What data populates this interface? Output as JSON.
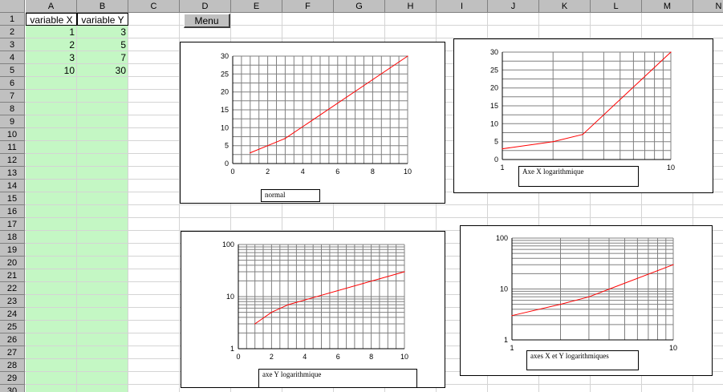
{
  "columns": [
    "A",
    "B",
    "C",
    "D",
    "E",
    "F",
    "G",
    "H",
    "I",
    "J",
    "K",
    "L",
    "M",
    "N"
  ],
  "rows": [
    "1",
    "2",
    "3",
    "4",
    "5",
    "6",
    "7",
    "8",
    "9",
    "10",
    "11",
    "12",
    "13",
    "14",
    "15",
    "16",
    "17",
    "18",
    "19",
    "20",
    "21",
    "22",
    "23",
    "24",
    "25",
    "26",
    "27",
    "28",
    "29",
    "30"
  ],
  "cells": {
    "A1": "variable X",
    "B1": "variable Y",
    "x_values": [
      "1",
      "2",
      "3",
      "10"
    ],
    "y_values": [
      "3",
      "5",
      "7",
      "30"
    ]
  },
  "menu_button": {
    "label": "Menu"
  },
  "colors": {
    "series_line": "#ff0000",
    "input_fill": "#c4f7c4",
    "grid": "#808080"
  },
  "chart_data": [
    {
      "type": "line",
      "caption": "normal",
      "x": [
        1,
        2,
        3,
        10
      ],
      "y": [
        3,
        5,
        7,
        30
      ],
      "xscale": "linear",
      "yscale": "linear",
      "xlim": [
        0,
        10
      ],
      "ylim": [
        0,
        30
      ],
      "xticks": [
        "0",
        "2",
        "4",
        "6",
        "8",
        "10"
      ],
      "yticks": [
        "0",
        "5",
        "10",
        "15",
        "20",
        "25",
        "30"
      ],
      "grid": true
    },
    {
      "type": "line",
      "caption": "Axe X logarithmique",
      "x": [
        1,
        2,
        3,
        10
      ],
      "y": [
        3,
        5,
        7,
        30
      ],
      "xscale": "log",
      "yscale": "linear",
      "xlim": [
        1,
        10
      ],
      "ylim": [
        0,
        30
      ],
      "xticks": [
        "1",
        "10"
      ],
      "yticks": [
        "0",
        "5",
        "10",
        "15",
        "20",
        "25",
        "30"
      ],
      "grid": true
    },
    {
      "type": "line",
      "caption": "axe Y logarithmique",
      "x": [
        1,
        2,
        3,
        10
      ],
      "y": [
        3,
        5,
        7,
        30
      ],
      "xscale": "linear",
      "yscale": "log",
      "xlim": [
        0,
        10
      ],
      "ylim": [
        1,
        100
      ],
      "xticks": [
        "0",
        "2",
        "4",
        "6",
        "8",
        "10"
      ],
      "yticks": [
        "1",
        "10",
        "100"
      ],
      "grid": true
    },
    {
      "type": "line",
      "caption": "axes X et Y logarithmiques",
      "x": [
        1,
        2,
        3,
        10
      ],
      "y": [
        3,
        5,
        7,
        30
      ],
      "xscale": "log",
      "yscale": "log",
      "xlim": [
        1,
        10
      ],
      "ylim": [
        1,
        100
      ],
      "xticks": [
        "1",
        "10"
      ],
      "yticks": [
        "1",
        "10",
        "100"
      ],
      "grid": true
    }
  ]
}
